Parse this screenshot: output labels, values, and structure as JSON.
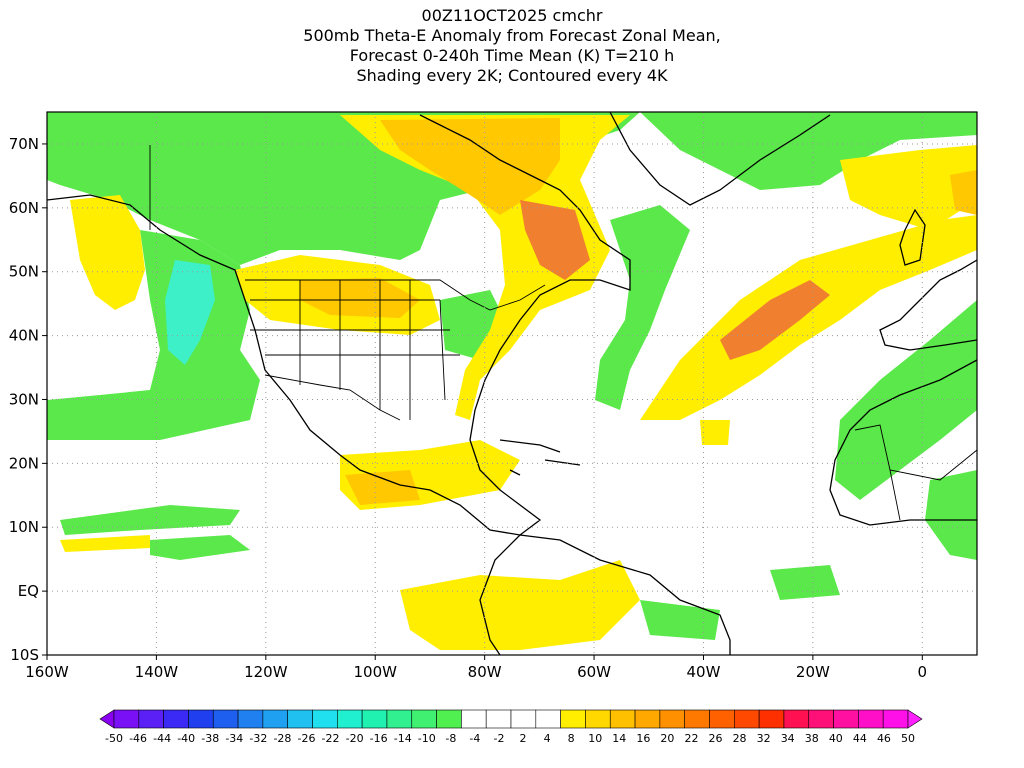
{
  "title": {
    "run": "00Z11OCT2025 cmchr",
    "line2": "500mb Theta-E Anomaly from Forecast Zonal Mean,",
    "line3": "Forecast 0-240h Time Mean (K) T=210 h",
    "line4": "Shading every 2K; Contoured every 4K"
  },
  "axes": {
    "lat_labels": [
      "70N",
      "60N",
      "50N",
      "40N",
      "30N",
      "20N",
      "10N",
      "EQ",
      "10S"
    ],
    "lat_values": [
      70,
      60,
      50,
      40,
      30,
      20,
      10,
      0,
      -10
    ],
    "lon_labels": [
      "160W",
      "140W",
      "120W",
      "100W",
      "80W",
      "60W",
      "40W",
      "20W",
      "0"
    ],
    "lon_values": [
      -160,
      -140,
      -120,
      -100,
      -80,
      -60,
      -40,
      -20,
      0
    ],
    "lat_range": [
      -10,
      75
    ],
    "lon_range": [
      -160,
      10
    ],
    "grid": "dotted"
  },
  "colorbar": {
    "labels": [
      "-50",
      "-46",
      "-44",
      "-40",
      "-38",
      "-34",
      "-32",
      "-28",
      "-26",
      "-22",
      "-20",
      "-16",
      "-14",
      "-10",
      "-8",
      "-4",
      "-2",
      "2",
      "4",
      "8",
      "10",
      "14",
      "16",
      "20",
      "22",
      "26",
      "28",
      "32",
      "34",
      "38",
      "40",
      "44",
      "46",
      "50"
    ],
    "colors": [
      "#8a00f0",
      "#7a10f5",
      "#5a20f5",
      "#3b2af5",
      "#2040f0",
      "#1e5ff0",
      "#2080f0",
      "#20a0f0",
      "#20c0f0",
      "#20e0f0",
      "#20f0d0",
      "#20f0b0",
      "#30f090",
      "#40f070",
      "#50f050",
      "#ffffff",
      "#ffffff",
      "#ffffff",
      "#ffffff",
      "#ffee00",
      "#ffd800",
      "#ffc000",
      "#ffa800",
      "#ff9000",
      "#ff7800",
      "#ff6000",
      "#ff4800",
      "#ff3000",
      "#ff1050",
      "#ff1078",
      "#ff10a0",
      "#ff10c8",
      "#ff10e8",
      "#ff20ff"
    ]
  },
  "colors": {
    "green": "#5ae84a",
    "cyan": "#3ef0c8",
    "yellow": "#ffee00",
    "gold": "#ffc800",
    "orange": "#f08030"
  }
}
